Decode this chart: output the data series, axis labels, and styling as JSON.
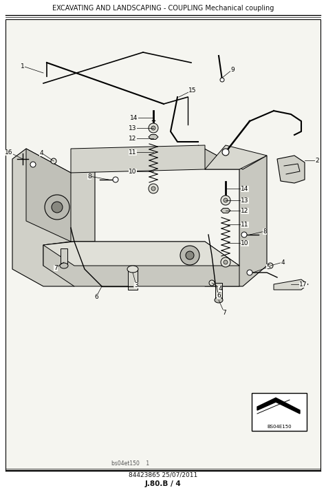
{
  "title": "EXCAVATING AND LANDSCAPING - COUPLING Mechanical coupling",
  "footer_line1": "84423865 25/07/2011",
  "footer_line2": "J.80.B / 4",
  "bottom_note": "bs04et150    1",
  "watermark_label": "BS04E150",
  "bg_color": "#f5f5f0",
  "page_bg": "#ffffff",
  "border_color": "#333333",
  "text_color": "#111111",
  "gray_light": "#d8d8d0",
  "gray_mid": "#b8b8b0",
  "gray_dark": "#888880"
}
